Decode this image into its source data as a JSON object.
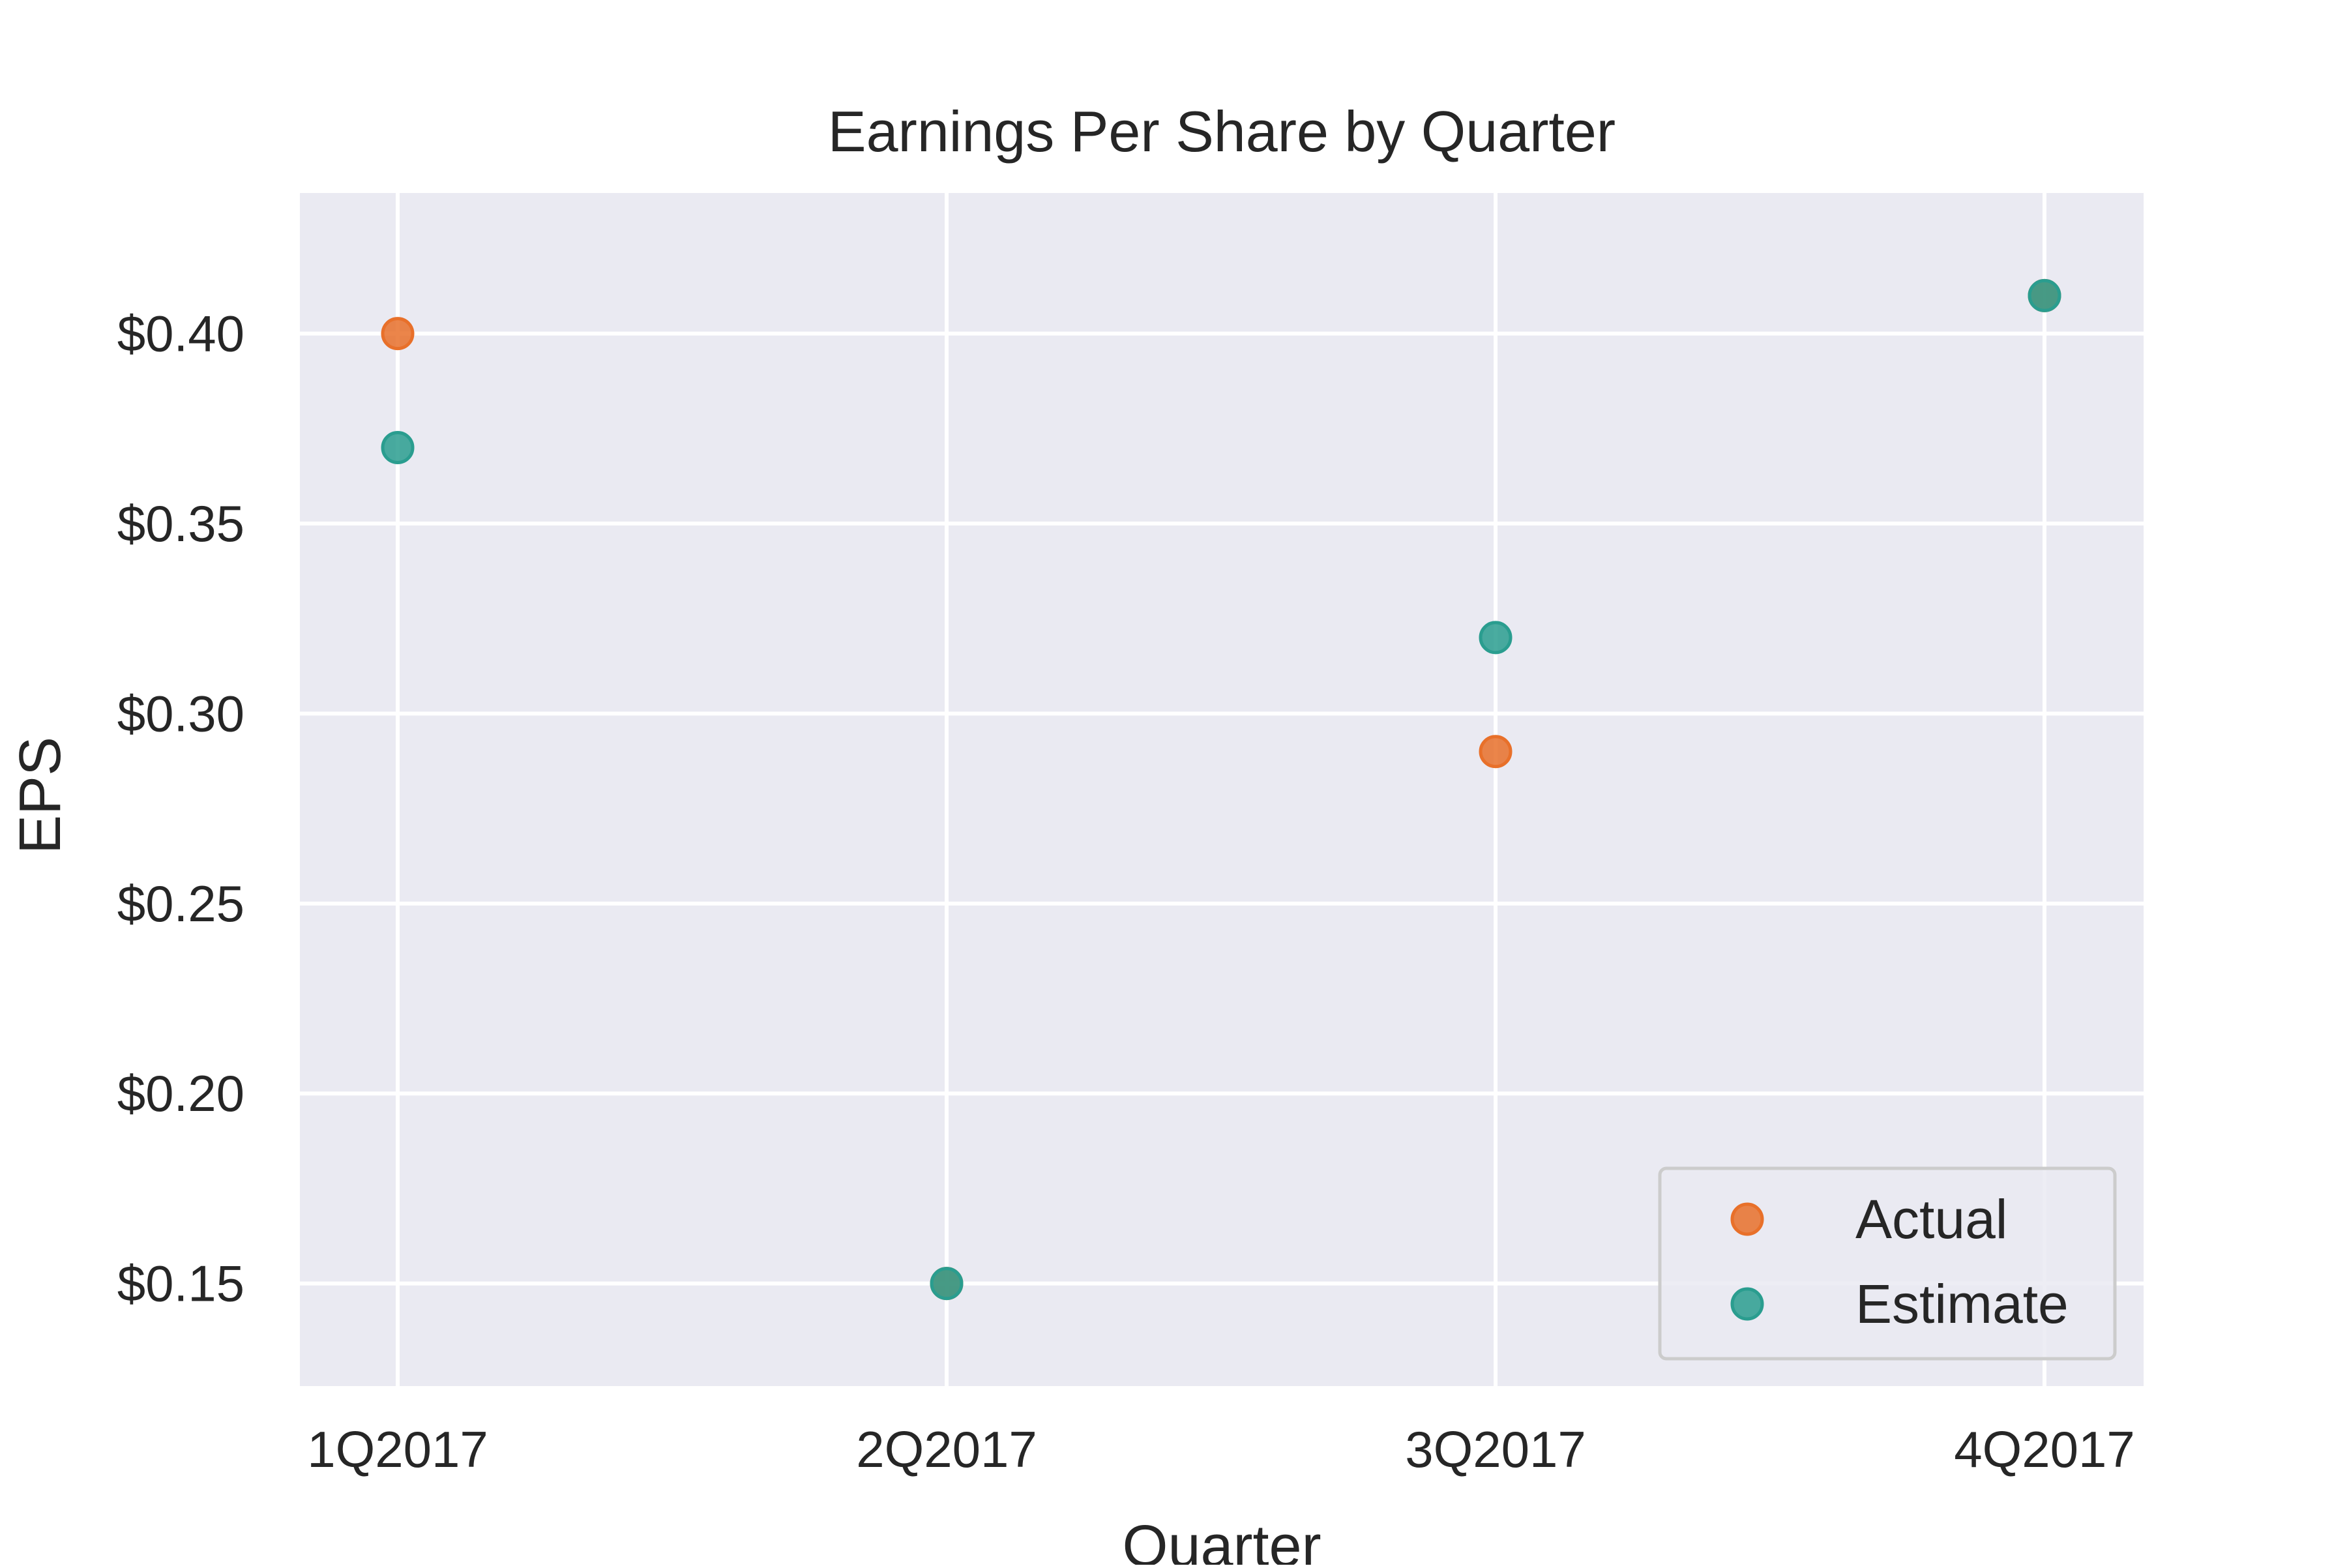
{
  "chart_data": {
    "type": "scatter",
    "title": "Earnings Per Share by Quarter",
    "xlabel": "Quarter",
    "ylabel": "EPS",
    "categories": [
      "1Q2017",
      "2Q2017",
      "3Q2017",
      "4Q2017"
    ],
    "yticks": [
      0.15,
      0.2,
      0.25,
      0.3,
      0.35,
      0.4
    ],
    "ytick_labels": [
      "$0.15",
      "$0.20",
      "$0.25",
      "$0.30",
      "$0.35",
      "$0.40"
    ],
    "ylim": [
      0.123,
      0.437
    ],
    "grid": true,
    "legend_position": "bottom-right",
    "series": [
      {
        "name": "Actual",
        "color": "#e8702a",
        "values": [
          0.4,
          0.15,
          0.29,
          0.41
        ]
      },
      {
        "name": "Estimate",
        "color": "#2a9d8f",
        "values": [
          0.37,
          0.15,
          0.32,
          0.41
        ]
      }
    ]
  }
}
